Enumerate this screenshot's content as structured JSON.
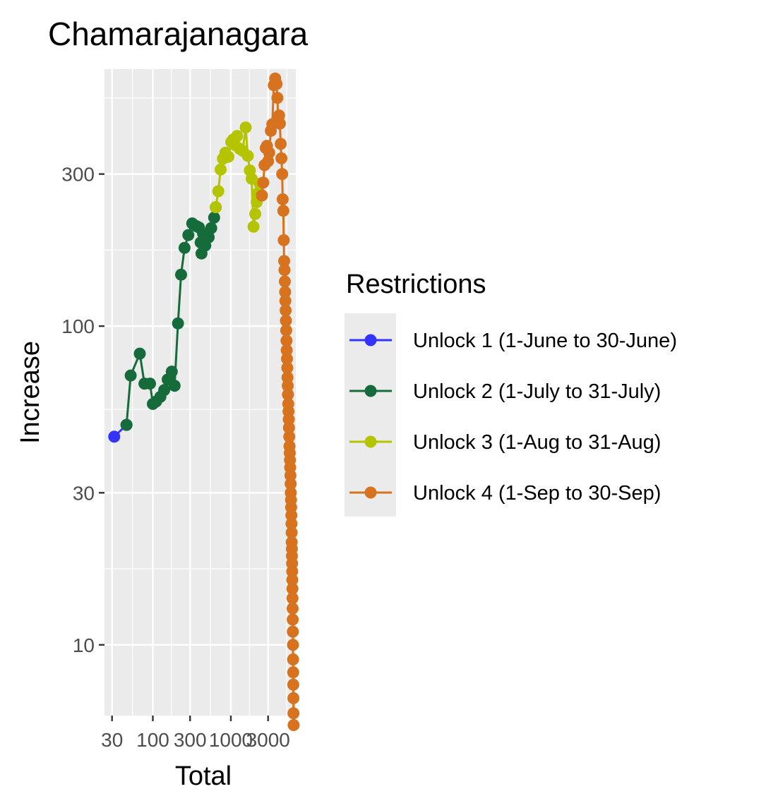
{
  "chart_data": {
    "type": "line",
    "title": "Chamarajanagara",
    "xlabel": "Total",
    "ylabel": "Increase",
    "x_scale": "log10",
    "y_scale": "log10",
    "xlim": [
      24,
      6800
    ],
    "ylim": [
      6,
      640
    ],
    "x_ticks": [
      30,
      100,
      300,
      1000,
      3000
    ],
    "x_tick_labels": [
      "30",
      "100",
      "300",
      "1000",
      "3000"
    ],
    "y_ticks": [
      10,
      30,
      100,
      300
    ],
    "y_tick_labels": [
      "10",
      "30",
      "100",
      "300"
    ],
    "grid": true,
    "legend": {
      "title": "Restrictions",
      "position": "right"
    },
    "series": [
      {
        "name": "Unlock 1 (1-June to 30-June)",
        "color": "#3333ff",
        "points": [
          [
            32,
            45
          ],
          [
            46,
            49
          ]
        ]
      },
      {
        "name": "Unlock 2 (1-July to 31-July)",
        "color": "#166b3a",
        "points": [
          [
            46,
            49
          ],
          [
            52,
            70
          ],
          [
            68,
            82
          ],
          [
            78,
            66
          ],
          [
            92,
            66
          ],
          [
            100,
            57
          ],
          [
            110,
            58
          ],
          [
            125,
            60
          ],
          [
            140,
            63
          ],
          [
            155,
            68
          ],
          [
            175,
            72
          ],
          [
            190,
            65
          ],
          [
            210,
            102
          ],
          [
            230,
            145
          ],
          [
            255,
            176
          ],
          [
            285,
            193
          ],
          [
            320,
            210
          ],
          [
            360,
            206
          ],
          [
            390,
            204
          ],
          [
            410,
            183
          ],
          [
            420,
            169
          ],
          [
            440,
            195
          ],
          [
            470,
            179
          ],
          [
            520,
            190
          ],
          [
            560,
            203
          ],
          [
            610,
            219
          ],
          [
            640,
            236
          ]
        ]
      },
      {
        "name": "Unlock 3 (1-Aug to 31-Aug)",
        "color": "#b5c400",
        "points": [
          [
            640,
            236
          ],
          [
            690,
            265
          ],
          [
            740,
            310
          ],
          [
            790,
            335
          ],
          [
            850,
            350
          ],
          [
            930,
            340
          ],
          [
            1010,
            378
          ],
          [
            1070,
            385
          ],
          [
            1130,
            370
          ],
          [
            1200,
            395
          ],
          [
            1300,
            360
          ],
          [
            1420,
            355
          ],
          [
            1550,
            420
          ],
          [
            1650,
            342
          ],
          [
            1750,
            308
          ],
          [
            1850,
            290
          ],
          [
            1950,
            205
          ],
          [
            2050,
            225
          ],
          [
            2150,
            245
          ],
          [
            2250,
            262
          ],
          [
            2350,
            280
          ],
          [
            2500,
            257
          ]
        ]
      },
      {
        "name": "Unlock 4 (1-Sep to 30-Sep)",
        "color": "#d7731e",
        "points": [
          [
            2500,
            257
          ],
          [
            2600,
            282
          ],
          [
            2700,
            320
          ],
          [
            2800,
            362
          ],
          [
            2900,
            368
          ],
          [
            3000,
            329
          ],
          [
            3100,
            350
          ],
          [
            3250,
            410
          ],
          [
            3400,
            430
          ],
          [
            3550,
            570
          ],
          [
            3700,
            598
          ],
          [
            3850,
            575
          ],
          [
            3950,
            520
          ],
          [
            4050,
            440
          ],
          [
            4150,
            458
          ],
          [
            4250,
            432
          ],
          [
            4350,
            373
          ],
          [
            4450,
            336
          ],
          [
            4550,
            300
          ],
          [
            4620,
            250
          ],
          [
            4700,
            230
          ],
          [
            4760,
            186
          ],
          [
            4820,
            160
          ],
          [
            4870,
            150
          ],
          [
            4920,
            138
          ],
          [
            4960,
            128
          ],
          [
            5000,
            120
          ],
          [
            5040,
            112
          ],
          [
            5080,
            104
          ],
          [
            5120,
            97
          ],
          [
            5160,
            90
          ],
          [
            5200,
            84
          ],
          [
            5240,
            79
          ],
          [
            5280,
            74
          ],
          [
            5320,
            69
          ],
          [
            5360,
            65
          ],
          [
            5400,
            61
          ],
          [
            5440,
            57
          ],
          [
            5480,
            54
          ],
          [
            5520,
            51
          ],
          [
            5560,
            48
          ],
          [
            5600,
            45
          ],
          [
            5640,
            42
          ],
          [
            5680,
            40
          ],
          [
            5720,
            38
          ],
          [
            5760,
            36
          ],
          [
            5800,
            34
          ],
          [
            5840,
            32
          ],
          [
            5870,
            30
          ],
          [
            5900,
            28.5
          ],
          [
            5930,
            27
          ],
          [
            5960,
            25.5
          ],
          [
            5990,
            24
          ],
          [
            6010,
            22.5
          ],
          [
            6030,
            21
          ],
          [
            6050,
            20
          ],
          [
            6070,
            19
          ],
          [
            6090,
            18
          ],
          [
            6110,
            17
          ],
          [
            6130,
            16
          ],
          [
            6150,
            15
          ],
          [
            6170,
            14
          ],
          [
            6190,
            13
          ],
          [
            6210,
            12
          ],
          [
            6230,
            11
          ],
          [
            6250,
            10
          ],
          [
            6270,
            9
          ],
          [
            6290,
            8.2
          ],
          [
            6310,
            7.5
          ],
          [
            6330,
            6.8
          ],
          [
            6350,
            6.1
          ],
          [
            6380,
            5.6
          ]
        ]
      }
    ]
  }
}
